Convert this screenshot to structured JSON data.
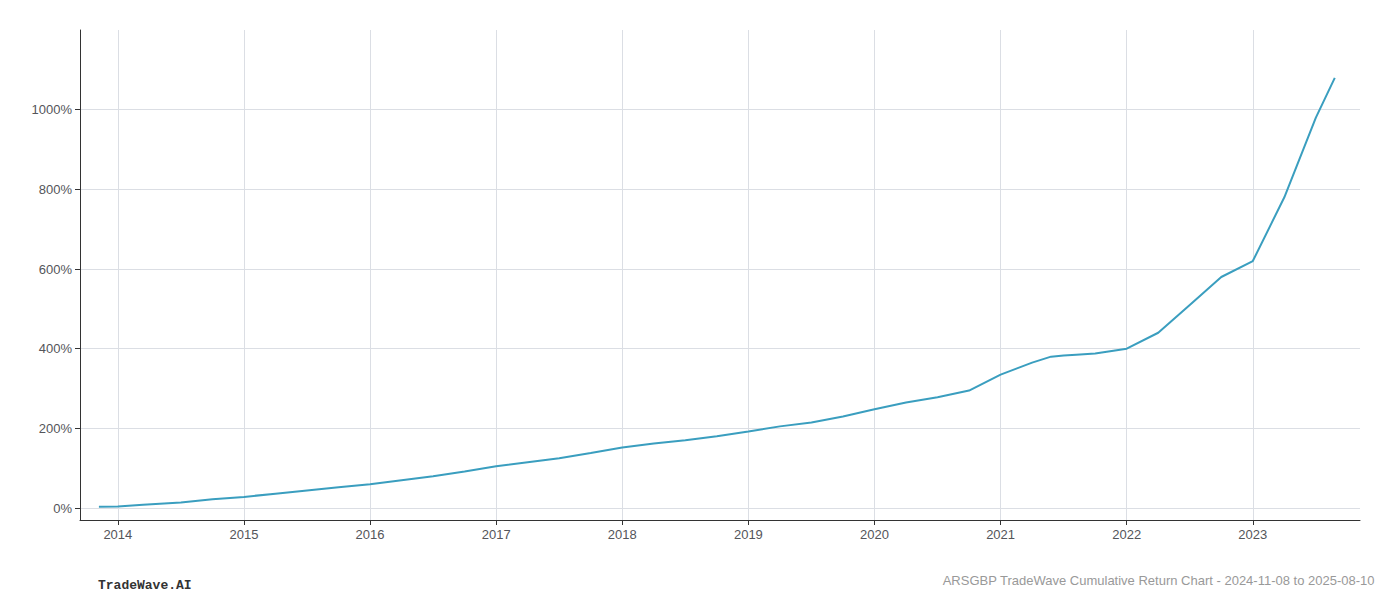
{
  "chart_data": {
    "type": "line",
    "title": "ARSGBP TradeWave Cumulative Return Chart - 2024-11-08 to 2025-08-10",
    "annotations": [
      "TradeWave.AI"
    ],
    "x": [
      2013.85,
      2014.0,
      2014.2,
      2014.5,
      2014.75,
      2015.0,
      2015.25,
      2015.5,
      2015.75,
      2016.0,
      2016.25,
      2016.5,
      2016.75,
      2017.0,
      2017.25,
      2017.5,
      2017.75,
      2018.0,
      2018.25,
      2018.5,
      2018.75,
      2019.0,
      2019.25,
      2019.5,
      2019.75,
      2020.0,
      2020.25,
      2020.5,
      2020.75,
      2021.0,
      2021.25,
      2021.4,
      2021.5,
      2021.6,
      2021.75,
      2022.0,
      2022.25,
      2022.5,
      2022.75,
      2023.0,
      2023.25,
      2023.5,
      2023.65
    ],
    "values": [
      3,
      4,
      8,
      14,
      22,
      28,
      36,
      44,
      52,
      60,
      70,
      80,
      92,
      105,
      115,
      125,
      138,
      152,
      162,
      170,
      180,
      192,
      205,
      215,
      230,
      248,
      265,
      278,
      295,
      335,
      365,
      380,
      383,
      385,
      388,
      400,
      440,
      510,
      580,
      620,
      780,
      980,
      1080
    ],
    "color": "#3a9ebf",
    "xlim": [
      2013.7,
      2023.85
    ],
    "xticks": [
      2014,
      2015,
      2016,
      2017,
      2018,
      2019,
      2020,
      2021,
      2022,
      2023
    ],
    "ylim": [
      -30,
      1200
    ],
    "yticks": [
      {
        "value": 0,
        "label": "0%"
      },
      {
        "value": 200,
        "label": "200%"
      },
      {
        "value": 400,
        "label": "400%"
      },
      {
        "value": 600,
        "label": "600%"
      },
      {
        "value": 800,
        "label": "800%"
      },
      {
        "value": 1000,
        "label": "1000%"
      }
    ],
    "grid": true
  }
}
